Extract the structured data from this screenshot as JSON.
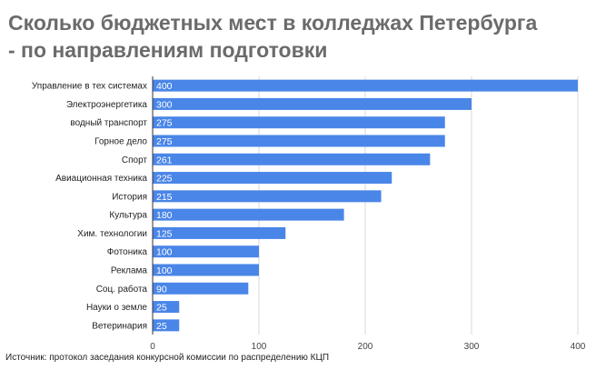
{
  "title_line1": "Сколько бюджетных мест в колледжах Петербурга",
  "title_line2": "- по направлениям подготовки",
  "source": "Источник: протокол заседания конкурсной комиссии по распределению КЦП",
  "colors": {
    "bar": "#4a86e8",
    "grid": "#d9d9d9",
    "title": "#6b6b6b"
  },
  "chart_data": {
    "type": "bar",
    "orientation": "horizontal",
    "categories": [
      "Управление в тех системах",
      "Электроэнергетика",
      "водный транспорт",
      "Горное дело",
      "Спорт",
      "Авиационная техника",
      "История",
      "Культура",
      "Хим. технологии",
      "Фотоника",
      "Реклама",
      "Соц. работа",
      "Науки о земле",
      "Ветеринария"
    ],
    "values": [
      400,
      300,
      275,
      275,
      261,
      225,
      215,
      180,
      125,
      100,
      100,
      90,
      25,
      25
    ],
    "xlim": [
      0,
      400
    ],
    "xticks": [
      0,
      100,
      200,
      300,
      400
    ],
    "grid": true,
    "data_labels": true
  }
}
